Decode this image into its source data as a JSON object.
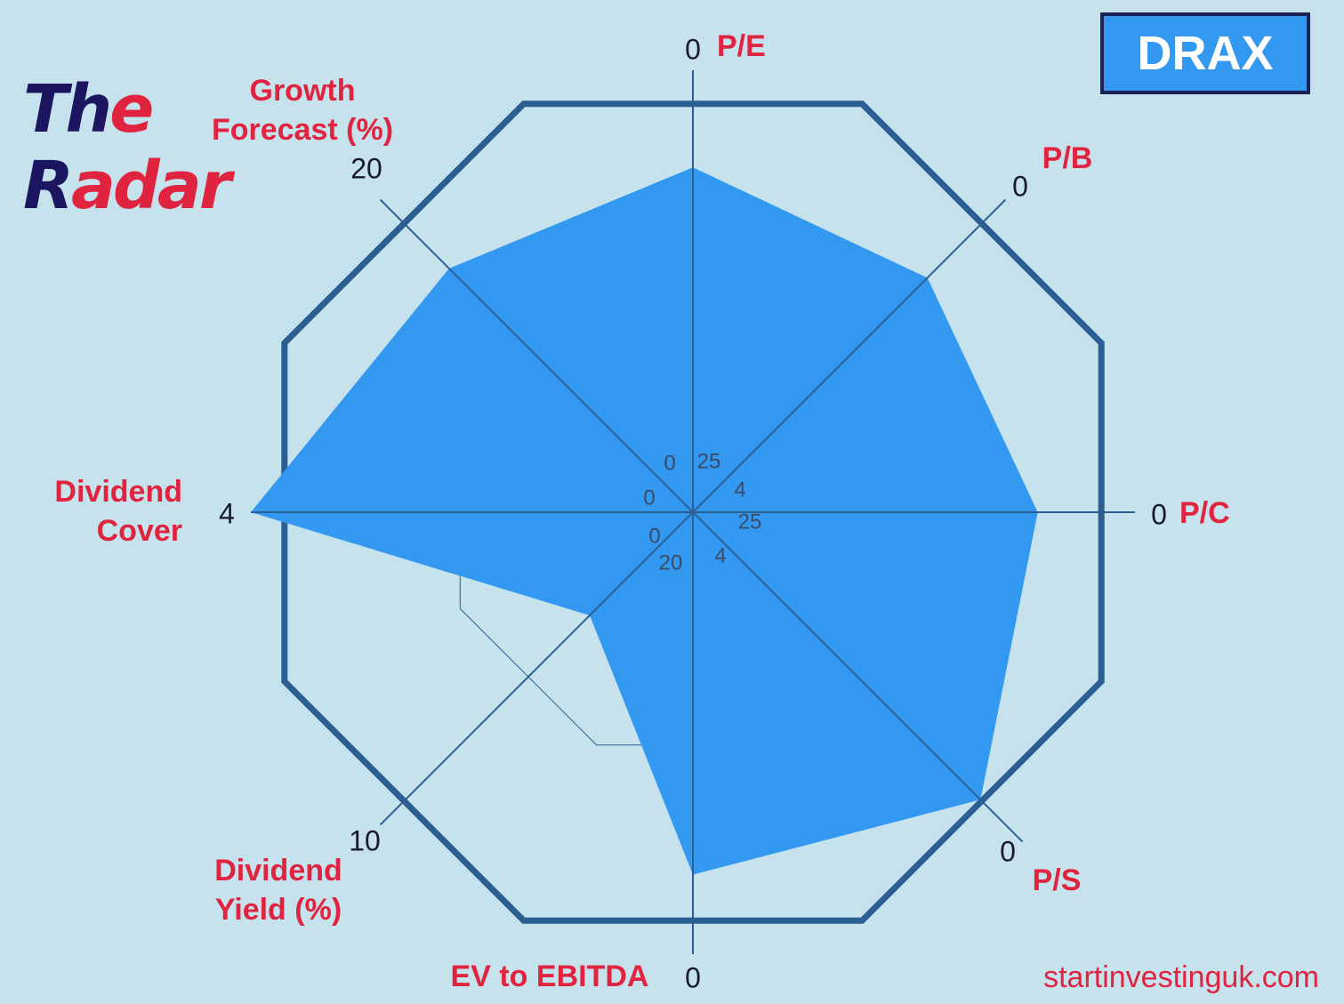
{
  "logo": {
    "line1": [
      "Th",
      "e"
    ],
    "line2": [
      "R",
      "adar"
    ]
  },
  "ticker": "DRAX",
  "source": "startinvestinguk.com",
  "colors": {
    "background": "#c6e2ec",
    "fill": "#3399f0",
    "frame": "#2b5e92",
    "axis": "#2b5e92",
    "label": "#e0233f",
    "tick": "#1a1a2e",
    "inner_tick": "#3a4a66"
  },
  "chart_data": {
    "type": "radar",
    "title": "DRAX",
    "series": [
      {
        "name": "DRAX",
        "axes": [
          "P/E",
          "P/B",
          "P/C",
          "P/S",
          "EV to EBITDA",
          "Dividend Yield (%)",
          "Dividend Cover",
          "Growth Forecast (%)"
        ],
        "values_fraction_of_max": [
          0.78,
          0.75,
          0.78,
          0.92,
          0.82,
          0.33,
          1.0,
          0.78
        ]
      }
    ],
    "reference_ring_fraction": 0.57,
    "axes": [
      {
        "name": "P/E",
        "label": [
          "P/E"
        ],
        "outer_tick": "0",
        "inner_tick": "25"
      },
      {
        "name": "P/B",
        "label": [
          "P/B"
        ],
        "outer_tick": "0",
        "inner_tick": "4"
      },
      {
        "name": "P/C",
        "label": [
          "P/C"
        ],
        "outer_tick": "0",
        "inner_tick": "25"
      },
      {
        "name": "P/S",
        "label": [
          "P/S"
        ],
        "outer_tick": "0",
        "inner_tick": "4"
      },
      {
        "name": "EV to EBITDA",
        "label": [
          "EV to EBITDA"
        ],
        "outer_tick": "0",
        "inner_tick": "20"
      },
      {
        "name": "Dividend Yield (%)",
        "label": [
          "Dividend",
          "Yield (%)"
        ],
        "outer_tick": "10",
        "inner_tick": "0"
      },
      {
        "name": "Dividend Cover",
        "label": [
          "Dividend",
          "Cover"
        ],
        "outer_tick": "4",
        "inner_tick": "0"
      },
      {
        "name": "Growth Forecast (%)",
        "label": [
          "Growth",
          "Forecast (%)"
        ],
        "outer_tick": "20",
        "inner_tick": "0"
      }
    ]
  }
}
